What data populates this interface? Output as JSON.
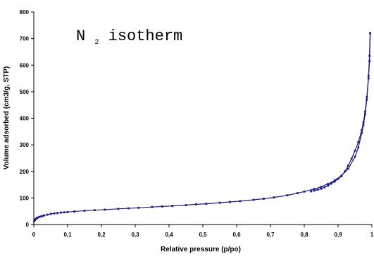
{
  "chart_data": {
    "type": "line",
    "title": {
      "main": "N",
      "subscript": "2",
      "rest": " isotherm"
    },
    "xlabel": "Relative pressure (p/po)",
    "ylabel": "Volume adsorbed (cm3/g, STP)",
    "xlim": [
      0,
      1
    ],
    "ylim": [
      0,
      800
    ],
    "xticks": [
      0,
      0.1,
      0.2,
      0.3,
      0.4,
      0.5,
      0.6,
      0.7,
      0.8,
      0.9,
      1
    ],
    "xtick_labels": [
      "0",
      "0,1",
      "0,2",
      "0,3",
      "0,4",
      "0,5",
      "0,6",
      "0,7",
      "0,8",
      "0,9",
      "1"
    ],
    "yticks": [
      0,
      100,
      200,
      300,
      400,
      500,
      600,
      700,
      800
    ],
    "ytick_labels": [
      "0",
      "100",
      "200",
      "300",
      "400",
      "500",
      "600",
      "700",
      "800"
    ],
    "grid": false,
    "legend": "none",
    "line_color": "#1a1a80",
    "series": [
      {
        "x": [
          0.001,
          0.003,
          0.005,
          0.008,
          0.01,
          0.015,
          0.02,
          0.025,
          0.03,
          0.04,
          0.05,
          0.06,
          0.07,
          0.08,
          0.09,
          0.1,
          0.12,
          0.15,
          0.18,
          0.21,
          0.25,
          0.28,
          0.31,
          0.35,
          0.38,
          0.41,
          0.45,
          0.48,
          0.51,
          0.55,
          0.58,
          0.61,
          0.65,
          0.68,
          0.71,
          0.75,
          0.78,
          0.8,
          0.83,
          0.85,
          0.87,
          0.89,
          0.91,
          0.93,
          0.95,
          0.96,
          0.97,
          0.975,
          0.98,
          0.985,
          0.99,
          0.993,
          0.995
        ],
        "values": [
          12,
          17,
          20,
          23,
          25,
          28,
          30,
          32,
          34,
          37,
          40,
          42,
          43,
          45,
          46,
          47,
          49,
          52,
          54,
          56,
          59,
          61,
          63,
          66,
          68,
          70,
          73,
          76,
          78,
          82,
          85,
          88,
          93,
          97,
          102,
          110,
          118,
          124,
          134,
          142,
          153,
          166,
          184,
          210,
          255,
          290,
          345,
          375,
          415,
          470,
          560,
          635,
          720
        ]
      },
      {
        "x": [
          0.995,
          0.993,
          0.99,
          0.985,
          0.98,
          0.975,
          0.97,
          0.96,
          0.95,
          0.94,
          0.93,
          0.92,
          0.91,
          0.9,
          0.89,
          0.88,
          0.87,
          0.86,
          0.85,
          0.84,
          0.83,
          0.82
        ],
        "values": [
          720,
          615,
          550,
          480,
          425,
          385,
          355,
          310,
          278,
          248,
          222,
          200,
          182,
          172,
          162,
          154,
          146,
          140,
          135,
          131,
          128,
          125
        ]
      }
    ]
  }
}
